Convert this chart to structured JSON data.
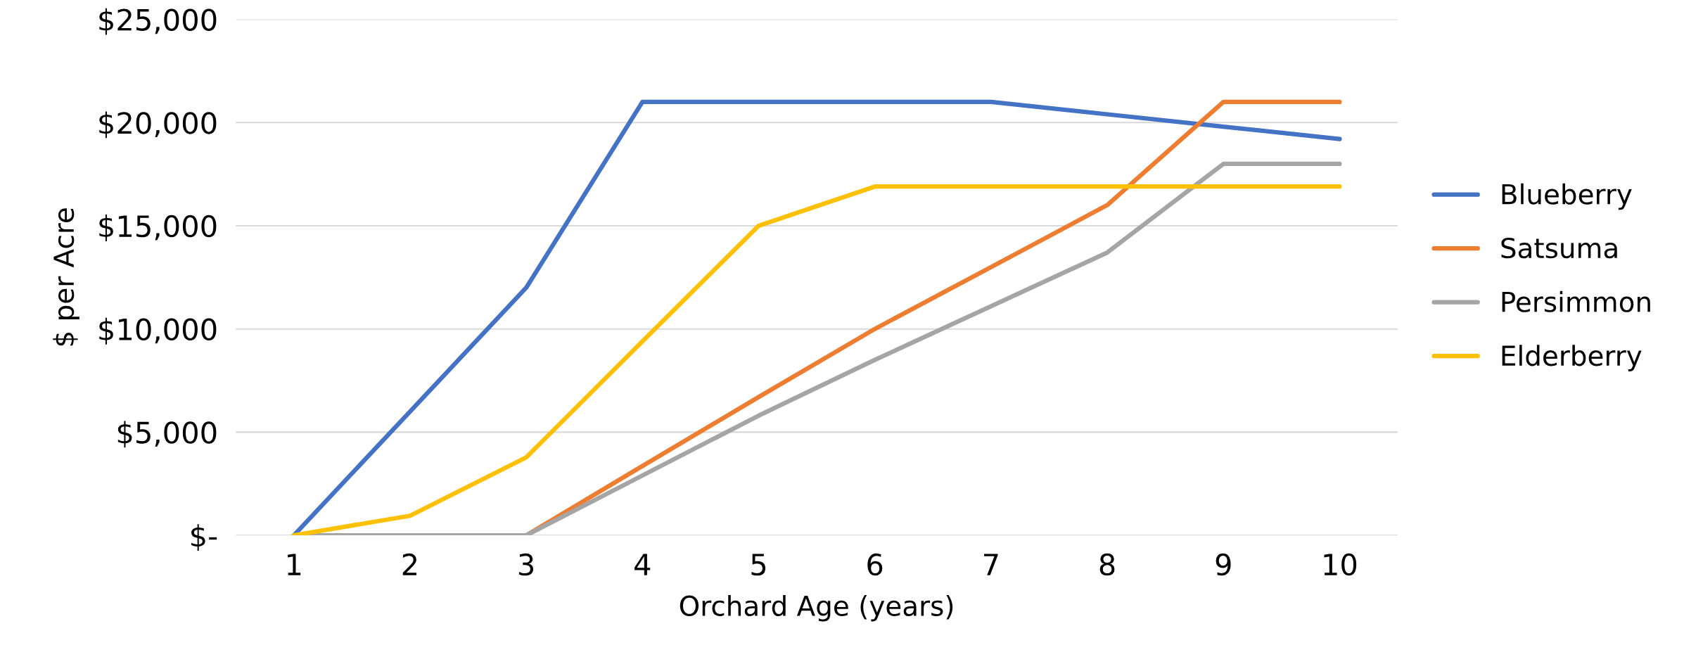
{
  "chart_data": {
    "type": "line",
    "xlabel": "Orchard Age (years)",
    "ylabel": "$ per Acre",
    "categories": [
      "1",
      "2",
      "3",
      "4",
      "5",
      "6",
      "7",
      "8",
      "9",
      "10"
    ],
    "series": [
      {
        "name": "Blueberry",
        "color": "#4472c4",
        "values": [
          0,
          6000,
          12000,
          21000,
          21000,
          21000,
          21000,
          20400,
          19800,
          19200
        ]
      },
      {
        "name": "Satsuma",
        "color": "#ed7d31",
        "values": [
          0,
          0,
          0,
          3360,
          6700,
          10000,
          13000,
          16000,
          21000,
          21000
        ]
      },
      {
        "name": "Persimmon",
        "color": "#a5a5a5",
        "values": [
          0,
          0,
          0,
          2900,
          5800,
          8500,
          11100,
          13700,
          18000,
          18000
        ]
      },
      {
        "name": "Elderberry",
        "color": "#ffc000",
        "values": [
          0,
          950,
          3780,
          9400,
          15000,
          16900,
          16900,
          16900,
          16900,
          16900
        ]
      }
    ],
    "ylim": [
      0,
      25000
    ],
    "yticks": [
      {
        "value": 0,
        "label": "$-"
      },
      {
        "value": 5000,
        "label": "$5,000"
      },
      {
        "value": 10000,
        "label": "$10,000"
      },
      {
        "value": 15000,
        "label": "$15,000"
      },
      {
        "value": 20000,
        "label": "$20,000"
      },
      {
        "value": 25000,
        "label": "$25,000"
      }
    ],
    "grid": "y",
    "legend": "right",
    "marker": "none",
    "line_style": "solid"
  }
}
